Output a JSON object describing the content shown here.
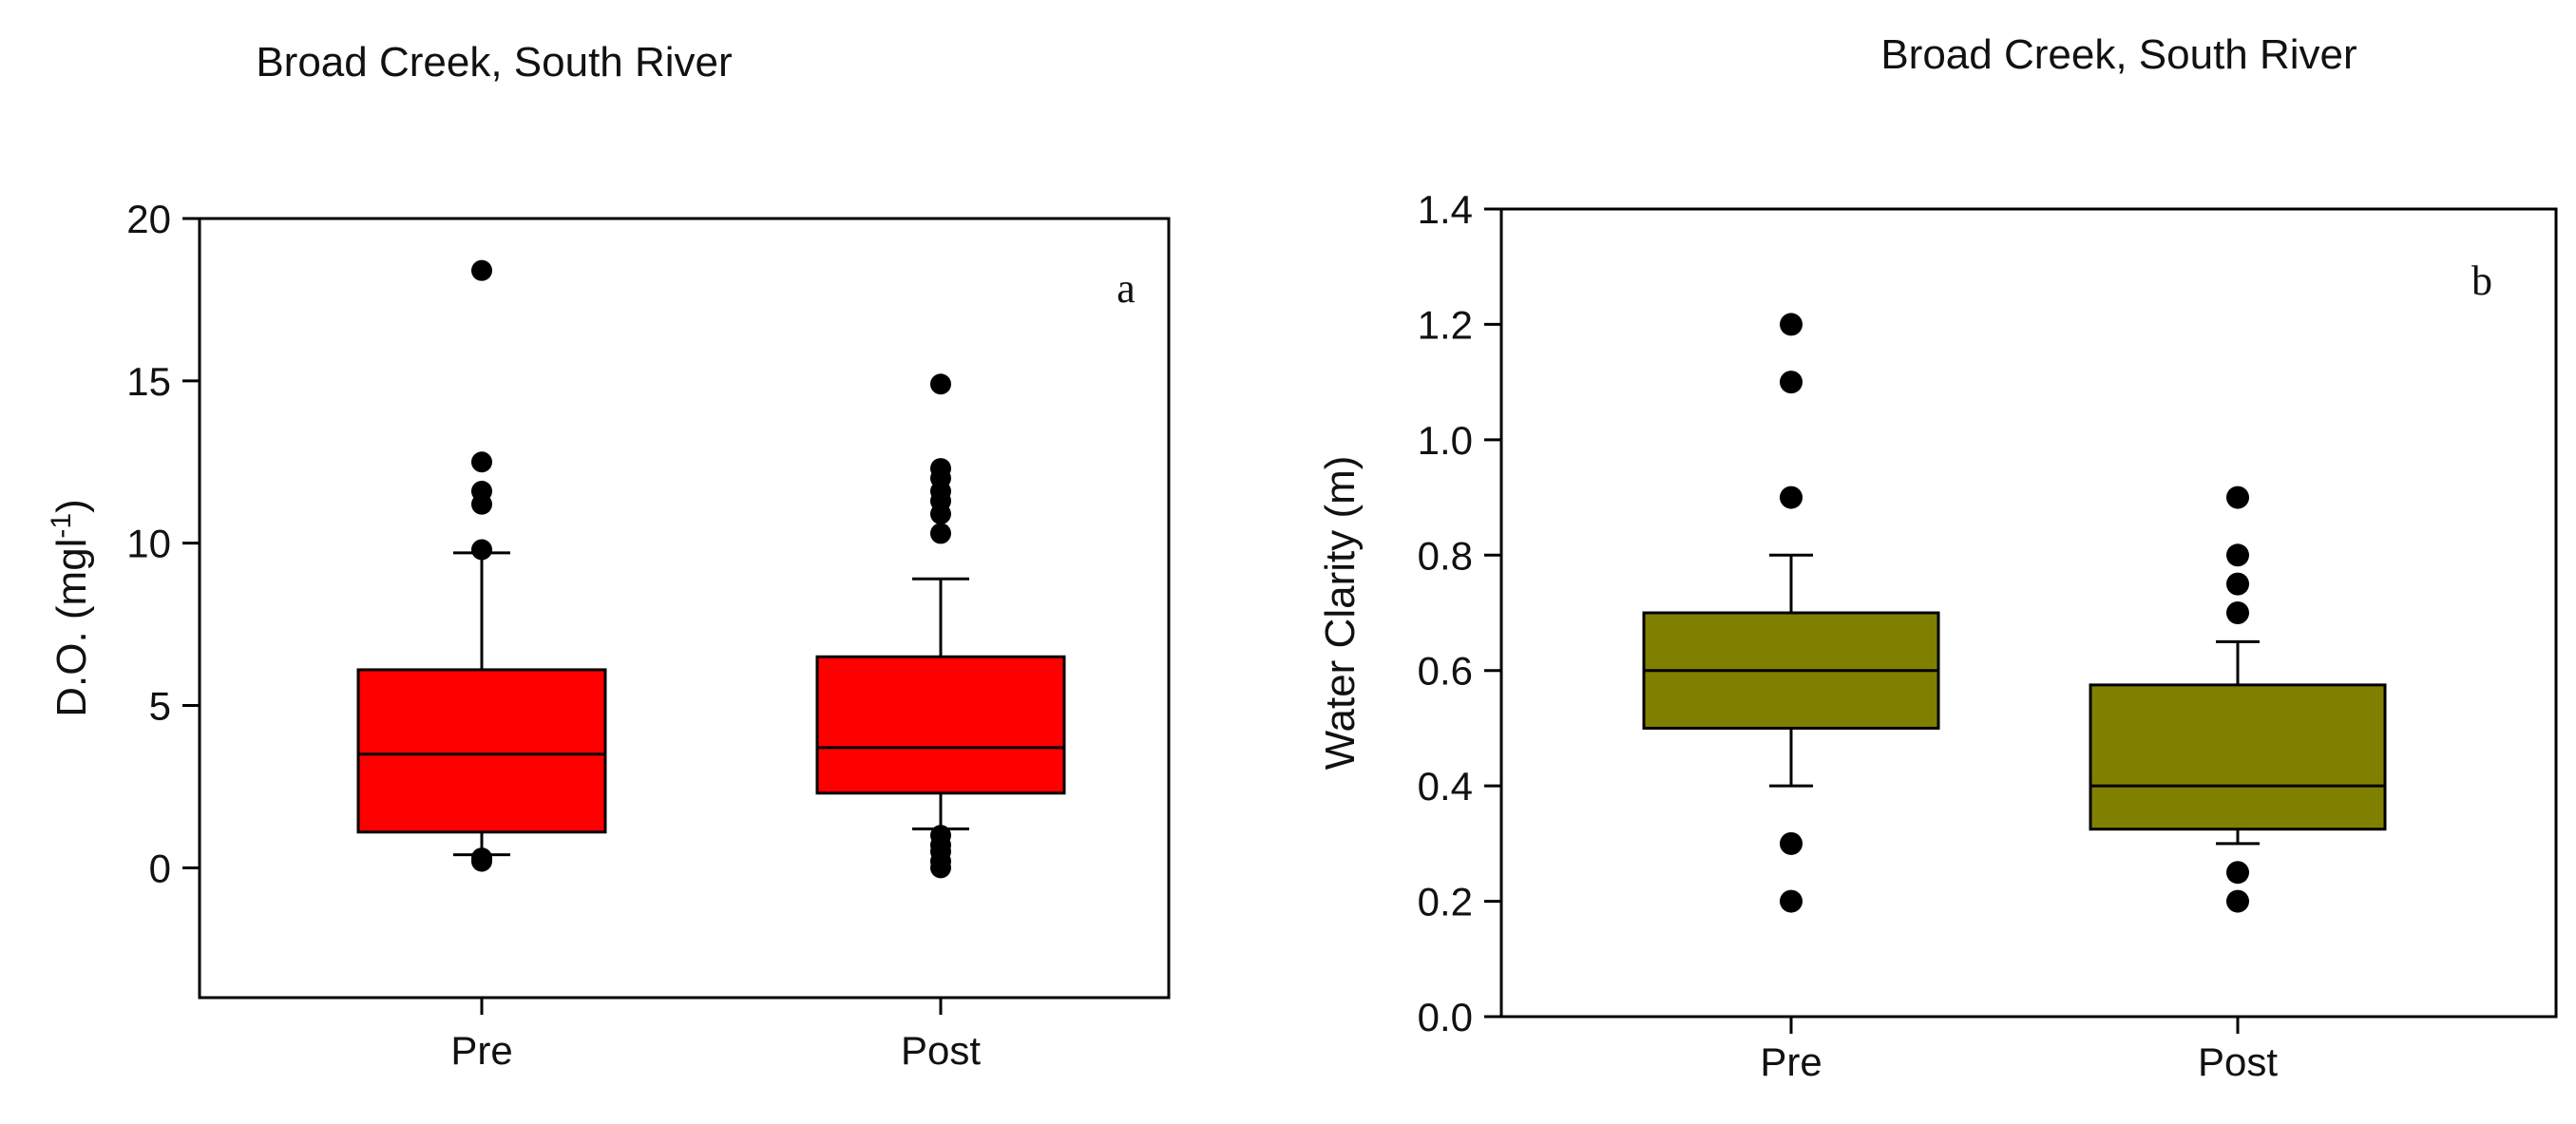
{
  "chart_data": [
    {
      "type": "box",
      "panel_label": "a",
      "title": "Broad Creek, South River",
      "ylabel": "D.O. (mgl",
      "ylabel_sup": "-1",
      "ylabel_close": ")",
      "xlabel": "",
      "ylim": [
        -4,
        20
      ],
      "yticks": [
        0,
        5,
        10,
        15,
        20
      ],
      "ytick_labels": [
        "0",
        "5",
        "10",
        "15",
        "20"
      ],
      "categories": [
        "Pre",
        "Post"
      ],
      "box_color": "#ff0000",
      "boxes": [
        {
          "category": "Pre",
          "whisker_low": 0.4,
          "q1": 1.1,
          "median": 3.5,
          "q3": 6.1,
          "whisker_high": 9.7,
          "outliers": [
            0.2,
            0.3,
            9.8,
            11.2,
            11.6,
            12.5,
            18.4
          ]
        },
        {
          "category": "Post",
          "whisker_low": 1.2,
          "q1": 2.3,
          "median": 3.7,
          "q3": 6.5,
          "whisker_high": 8.9,
          "outliers": [
            0.0,
            0.2,
            0.5,
            0.7,
            1.0,
            10.3,
            10.9,
            11.3,
            11.6,
            12.0,
            12.3,
            14.9
          ]
        }
      ]
    },
    {
      "type": "box",
      "panel_label": "b",
      "title": "Broad Creek, South River",
      "ylabel": "Water Clarity (m)",
      "xlabel": "",
      "ylim": [
        0,
        1.4
      ],
      "yticks": [
        0,
        0.2,
        0.4,
        0.6,
        0.8,
        1.0,
        1.2,
        1.4
      ],
      "ytick_labels": [
        "0.0",
        "0.2",
        "0.4",
        "0.6",
        "0.8",
        "1.0",
        "1.2",
        "1.4"
      ],
      "categories": [
        "Pre",
        "Post"
      ],
      "box_color": "#808000",
      "boxes": [
        {
          "category": "Pre",
          "whisker_low": 0.4,
          "q1": 0.5,
          "median": 0.6,
          "q3": 0.7,
          "whisker_high": 0.8,
          "outliers": [
            0.2,
            0.3,
            0.9,
            1.1,
            1.2
          ]
        },
        {
          "category": "Post",
          "whisker_low": 0.3,
          "q1": 0.325,
          "median": 0.4,
          "q3": 0.575,
          "whisker_high": 0.65,
          "outliers": [
            0.2,
            0.25,
            0.7,
            0.75,
            0.8,
            0.9
          ]
        }
      ]
    }
  ]
}
